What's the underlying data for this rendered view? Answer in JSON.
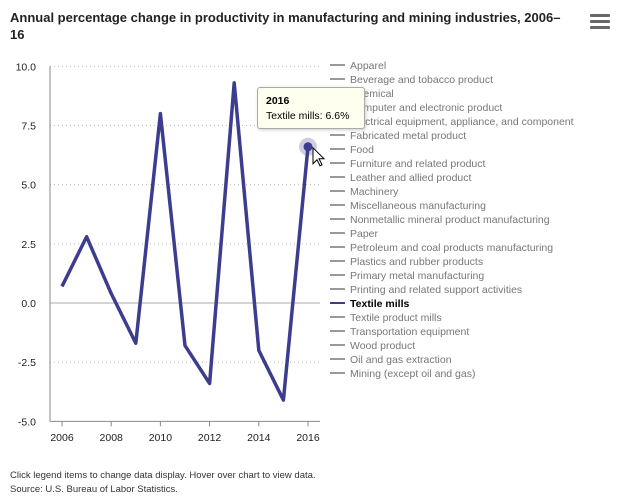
{
  "title": "Annual percentage change in productivity in manufacturing and mining industries, 2006–16",
  "menu_icon": "hamburger-menu-icon",
  "footer": {
    "note": "Click legend items to change data display. Hover over chart to view data.",
    "source": "Source: U.S. Bureau of Labor Statistics."
  },
  "tooltip": {
    "year": "2016",
    "text": "Textile mills: 6.6%"
  },
  "chart_data": {
    "type": "line",
    "title": "Annual percentage change in productivity in manufacturing and mining industries, 2006–16",
    "x": [
      2006,
      2007,
      2008,
      2009,
      2010,
      2011,
      2012,
      2013,
      2014,
      2015,
      2016
    ],
    "xticks": [
      "2006",
      "2008",
      "2010",
      "2012",
      "2014",
      "2016"
    ],
    "yticks": [
      "10.0",
      "7.5",
      "5.0",
      "2.5",
      "0.0",
      "-2.5",
      "-5.0"
    ],
    "ylim": [
      -5,
      10
    ],
    "grid": "horizontal dotted",
    "legend_placement": "right",
    "series": [
      {
        "name": "Textile mills",
        "color": "#3d3d8f",
        "values": [
          0.7,
          2.8,
          0.4,
          -1.7,
          8.0,
          -1.8,
          -3.4,
          9.3,
          -2.0,
          -4.1,
          6.6
        ],
        "active": true
      }
    ],
    "legend": [
      "Apparel",
      "Beverage and tobacco product",
      "Chemical",
      "Computer and electronic product",
      "Electrical equipment, appliance, and component",
      "Fabricated metal product",
      "Food",
      "Furniture and related product",
      "Leather and allied product",
      "Machinery",
      "Miscellaneous manufacturing",
      "Nonmetallic mineral product manufacturing",
      "Paper",
      "Petroleum and coal products manufacturing",
      "Plastics and rubber products",
      "Primary metal manufacturing",
      "Printing and related support activities",
      "Textile mills",
      "Textile product mills",
      "Transportation equipment",
      "Wood product",
      "Oil and gas extraction",
      "Mining (except oil and gas)"
    ],
    "inactive_color": "#808080"
  }
}
